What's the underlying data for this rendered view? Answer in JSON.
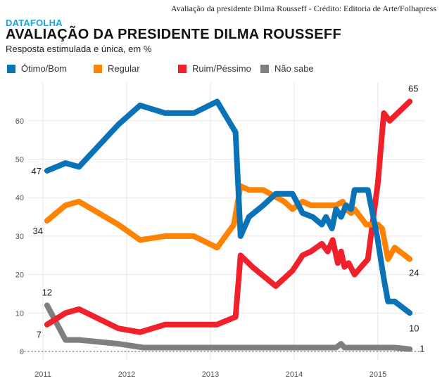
{
  "header": {
    "credit": "Avaliação da presidente Dilma Rousseff - Crédito: Editoria de Arte/Folhapress",
    "brand": "DATAFOLHA",
    "title": "AVALIAÇÃO DA PRESIDENTE DILMA ROUSSEFF",
    "subtitle": "Resposta estimulada e única, em %"
  },
  "chart_data": {
    "type": "line",
    "title": "AVALIAÇÃO DA PRESIDENTE DILMA ROUSSEFF",
    "subtitle": "Resposta estimulada e única, em %",
    "xlabel": "",
    "ylabel": "%",
    "xlim": [
      2010.95,
      2015.55
    ],
    "ylim": [
      0,
      68
    ],
    "xticks": [
      2011,
      2012,
      2013,
      2014,
      2015
    ],
    "xtick_labels": [
      "2011",
      "2012",
      "2013",
      "2014",
      "2015"
    ],
    "yticks": [
      0,
      10,
      20,
      30,
      40,
      50,
      60
    ],
    "ytick_labels": [
      "0",
      "10",
      "20",
      "30",
      "40",
      "50",
      "60"
    ],
    "grid": true,
    "legend_position": "top",
    "series": [
      {
        "name": "Ótimo/Bom",
        "color": "#0a73b7",
        "points": [
          [
            2011.05,
            47
          ],
          [
            2011.27,
            49
          ],
          [
            2011.43,
            48
          ],
          [
            2011.9,
            59
          ],
          [
            2012.16,
            64
          ],
          [
            2012.46,
            62
          ],
          [
            2012.8,
            62
          ],
          [
            2013.08,
            65
          ],
          [
            2013.3,
            57
          ],
          [
            2013.36,
            30
          ],
          [
            2013.46,
            35
          ],
          [
            2013.63,
            38
          ],
          [
            2013.78,
            41
          ],
          [
            2013.98,
            41
          ],
          [
            2014.1,
            36
          ],
          [
            2014.22,
            35
          ],
          [
            2014.33,
            33
          ],
          [
            2014.38,
            35
          ],
          [
            2014.45,
            32
          ],
          [
            2014.5,
            37
          ],
          [
            2014.56,
            35
          ],
          [
            2014.62,
            38
          ],
          [
            2014.68,
            37
          ],
          [
            2014.72,
            42
          ],
          [
            2014.88,
            42
          ],
          [
            2014.99,
            30
          ],
          [
            2015.07,
            19
          ],
          [
            2015.12,
            13
          ],
          [
            2015.2,
            13
          ],
          [
            2015.38,
            10
          ]
        ],
        "start_label": "47",
        "end_label": "10"
      },
      {
        "name": "Regular",
        "color": "#ff8200",
        "points": [
          [
            2011.05,
            34
          ],
          [
            2011.27,
            38
          ],
          [
            2011.43,
            39
          ],
          [
            2011.9,
            33
          ],
          [
            2012.16,
            29
          ],
          [
            2012.46,
            30
          ],
          [
            2012.8,
            30
          ],
          [
            2013.08,
            27
          ],
          [
            2013.28,
            33
          ],
          [
            2013.36,
            43
          ],
          [
            2013.46,
            42
          ],
          [
            2013.63,
            42
          ],
          [
            2013.88,
            39
          ],
          [
            2013.98,
            37
          ],
          [
            2014.1,
            39
          ],
          [
            2014.2,
            38
          ],
          [
            2014.5,
            38
          ],
          [
            2014.58,
            39
          ],
          [
            2014.62,
            37
          ],
          [
            2014.68,
            36
          ],
          [
            2014.72,
            37
          ],
          [
            2014.86,
            33
          ],
          [
            2015.0,
            33
          ],
          [
            2015.05,
            32
          ],
          [
            2015.12,
            24
          ],
          [
            2015.2,
            27
          ],
          [
            2015.38,
            24
          ]
        ],
        "start_label": "34",
        "end_label": "24"
      },
      {
        "name": "Ruim/Péssimo",
        "color": "#f0212a",
        "points": [
          [
            2011.05,
            7
          ],
          [
            2011.27,
            10
          ],
          [
            2011.43,
            11
          ],
          [
            2011.9,
            6
          ],
          [
            2012.16,
            5
          ],
          [
            2012.46,
            7
          ],
          [
            2012.8,
            7
          ],
          [
            2013.08,
            7
          ],
          [
            2013.3,
            9
          ],
          [
            2013.36,
            25
          ],
          [
            2013.5,
            22
          ],
          [
            2013.78,
            17
          ],
          [
            2013.98,
            21
          ],
          [
            2014.1,
            25
          ],
          [
            2014.2,
            26
          ],
          [
            2014.33,
            28
          ],
          [
            2014.4,
            26
          ],
          [
            2014.46,
            29
          ],
          [
            2014.52,
            23
          ],
          [
            2014.56,
            26
          ],
          [
            2014.6,
            22
          ],
          [
            2014.65,
            23
          ],
          [
            2014.72,
            20
          ],
          [
            2014.88,
            24
          ],
          [
            2015.0,
            44
          ],
          [
            2015.07,
            62
          ],
          [
            2015.14,
            60
          ],
          [
            2015.38,
            65
          ]
        ],
        "start_label": "7",
        "end_label": "65"
      },
      {
        "name": "Não sabe",
        "color": "#7f7f7f",
        "points": [
          [
            2011.05,
            12
          ],
          [
            2011.27,
            3
          ],
          [
            2011.43,
            3
          ],
          [
            2011.9,
            2
          ],
          [
            2012.2,
            1
          ],
          [
            2013.0,
            1
          ],
          [
            2014.0,
            1
          ],
          [
            2014.5,
            1
          ],
          [
            2014.56,
            2
          ],
          [
            2014.6,
            1
          ],
          [
            2015.2,
            1
          ],
          [
            2015.38,
            0.6
          ]
        ],
        "start_label": "12",
        "end_label": "1"
      }
    ]
  }
}
